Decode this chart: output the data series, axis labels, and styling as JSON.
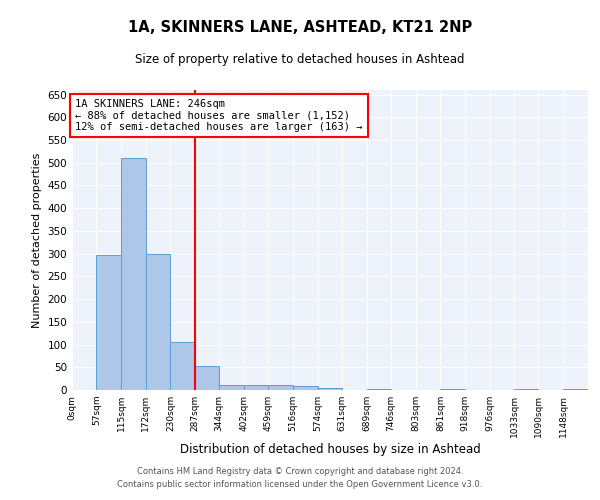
{
  "title1": "1A, SKINNERS LANE, ASHTEAD, KT21 2NP",
  "title2": "Size of property relative to detached houses in Ashtead",
  "xlabel": "Distribution of detached houses by size in Ashtead",
  "ylabel": "Number of detached properties",
  "bar_values": [
    0,
    297,
    510,
    300,
    105,
    53,
    12,
    12,
    11,
    8,
    5,
    0,
    2,
    0,
    0,
    3,
    0,
    0,
    2,
    0,
    2
  ],
  "bin_edges": [
    0,
    57,
    115,
    172,
    230,
    287,
    344,
    402,
    459,
    516,
    574,
    631,
    689,
    746,
    803,
    861,
    918,
    976,
    1033,
    1090,
    1148,
    1206
  ],
  "x_tick_labels": [
    "0sqm",
    "57sqm",
    "115sqm",
    "172sqm",
    "230sqm",
    "287sqm",
    "344sqm",
    "402sqm",
    "459sqm",
    "516sqm",
    "574sqm",
    "631sqm",
    "689sqm",
    "746sqm",
    "803sqm",
    "861sqm",
    "918sqm",
    "976sqm",
    "1033sqm",
    "1090sqm",
    "1148sqm"
  ],
  "bar_color": "#aec6e8",
  "bar_edgecolor": "#5a9fd4",
  "property_line_x": 287,
  "annotation_text1": "1A SKINNERS LANE: 246sqm",
  "annotation_text2": "← 88% of detached houses are smaller (1,152)",
  "annotation_text3": "12% of semi-detached houses are larger (163) →",
  "annotation_box_color": "white",
  "annotation_box_edgecolor": "red",
  "vline_color": "red",
  "ylim": [
    0,
    660
  ],
  "yticks": [
    0,
    50,
    100,
    150,
    200,
    250,
    300,
    350,
    400,
    450,
    500,
    550,
    600,
    650
  ],
  "background_color": "#eef2fa",
  "grid_color": "white",
  "footer1": "Contains HM Land Registry data © Crown copyright and database right 2024.",
  "footer2": "Contains public sector information licensed under the Open Government Licence v3.0."
}
